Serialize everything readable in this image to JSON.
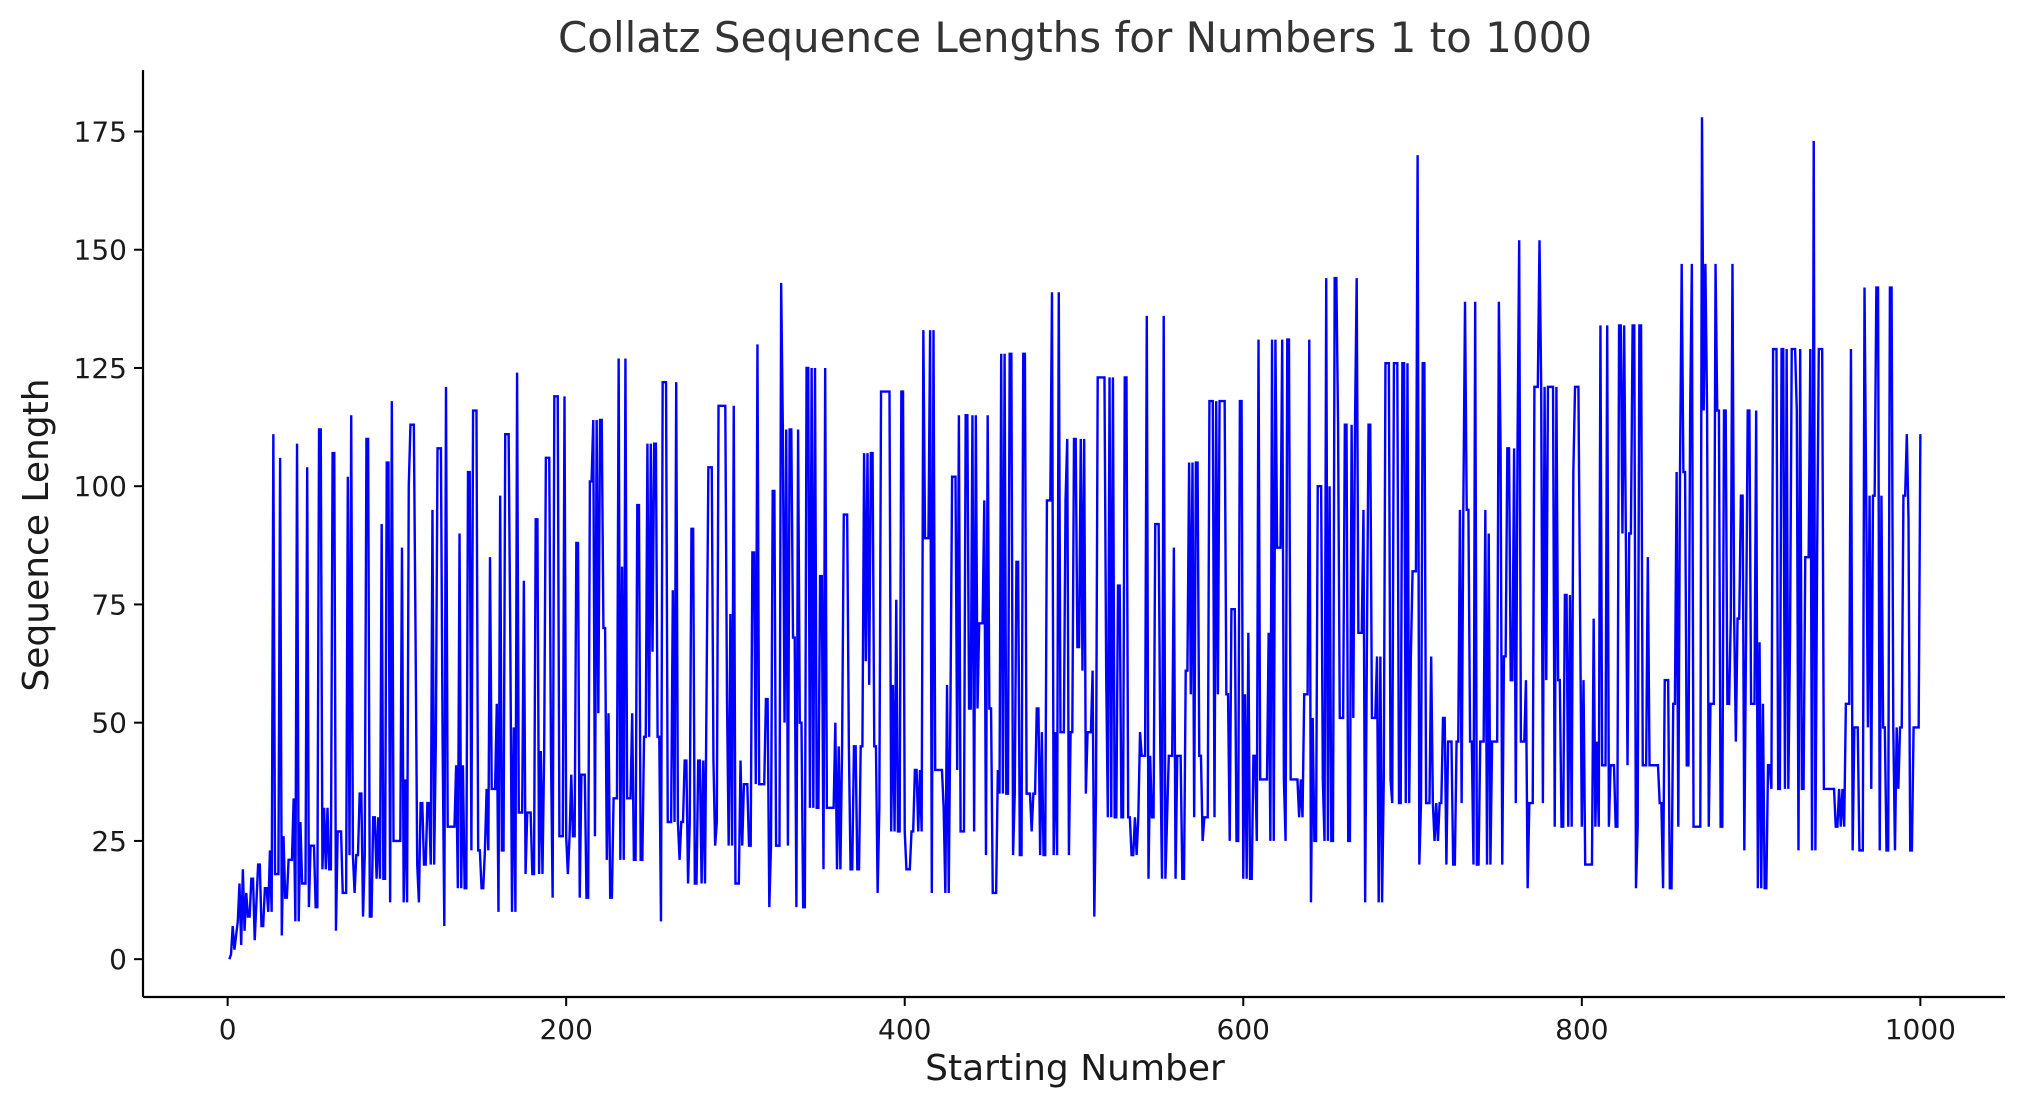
{
  "chart_data": {
    "type": "line",
    "title": "Collatz Sequence Lengths for Numbers 1 to 1000",
    "xlabel": "Starting Number",
    "ylabel": "Sequence Length",
    "xlim": [
      -50,
      1050
    ],
    "ylim": [
      -8,
      188
    ],
    "xticks": [
      0,
      200,
      400,
      600,
      800,
      1000
    ],
    "yticks": [
      0,
      25,
      50,
      75,
      100,
      125,
      150,
      175
    ],
    "grid": false,
    "legend": "none",
    "series": [
      {
        "color": "#0000ff",
        "generator": "collatz-total-stopping-time",
        "x_start": 1,
        "x_end": 1000
      }
    ]
  }
}
